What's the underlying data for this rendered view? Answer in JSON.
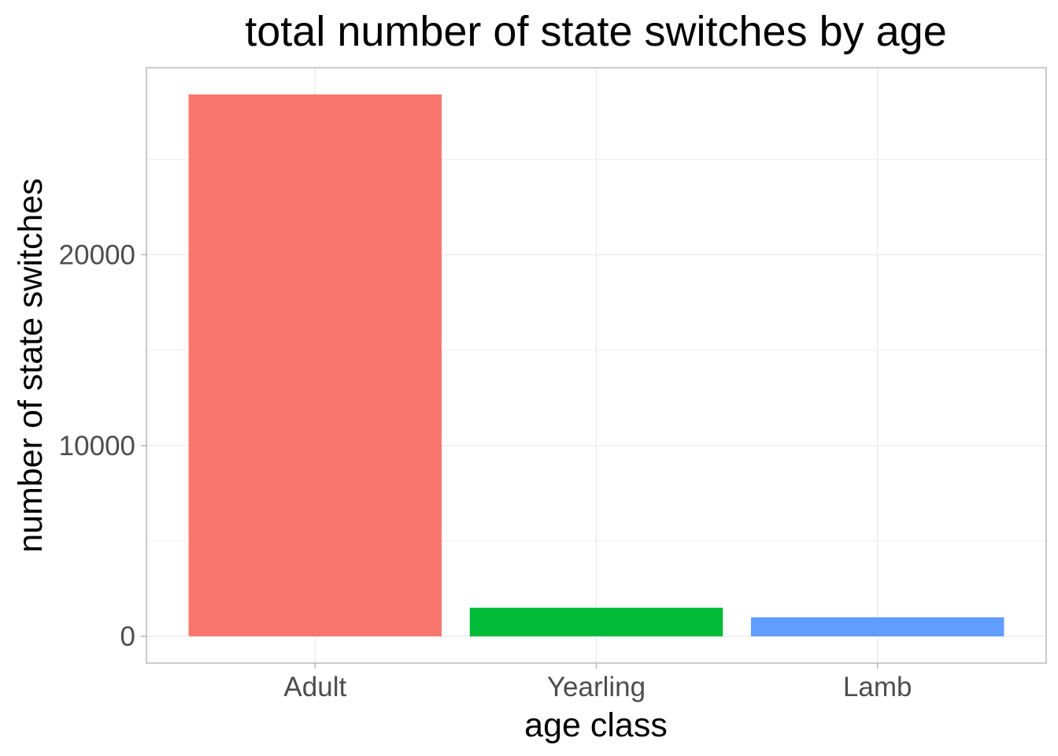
{
  "chart_data": {
    "type": "bar",
    "title": "total number of state switches by age",
    "xlabel": "age class",
    "ylabel": "number of state switches",
    "categories": [
      "Adult",
      "Yearling",
      "Lamb"
    ],
    "values": [
      28400,
      1500,
      1000
    ],
    "colors": [
      "#F8766D",
      "#00BA38",
      "#619CFF"
    ],
    "ylim": [
      -1400,
      29800
    ],
    "yticks": [
      0,
      10000,
      20000
    ],
    "ytick_labels": [
      "0",
      "10000",
      "20000"
    ],
    "grid": true,
    "legend": "none"
  }
}
